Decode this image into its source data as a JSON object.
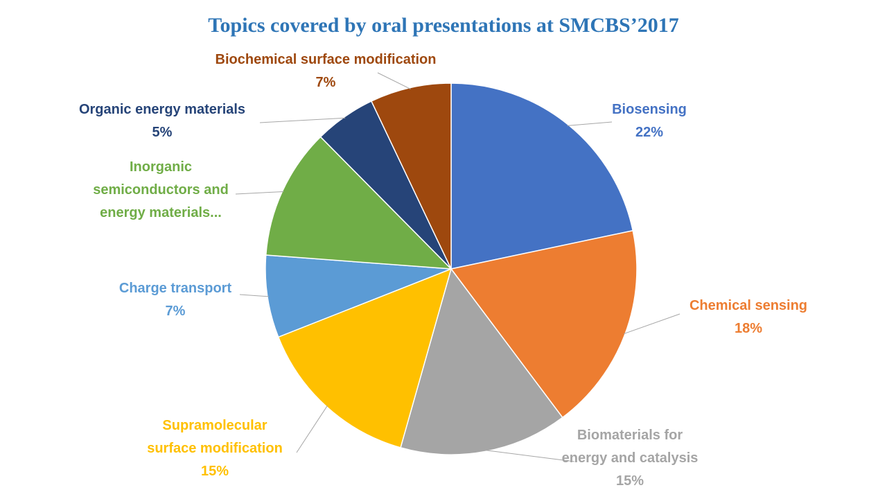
{
  "chart_data": {
    "type": "pie",
    "title": "Topics covered by oral presentations at SMCBS’2017",
    "slices": [
      {
        "name": "Biosensing",
        "lines": [
          "Biosensing"
        ],
        "pct_label": "22%",
        "value": 21.5,
        "color": "#4472C4",
        "label_color": "#4472C4"
      },
      {
        "name": "Chemical sensing",
        "lines": [
          "Chemical sensing"
        ],
        "pct_label": "18%",
        "value": 17.9,
        "color": "#ED7D31",
        "label_color": "#ED7D31"
      },
      {
        "name": "Biomaterials for energy and catalysis",
        "lines": [
          "Biomaterials for",
          "energy and catalysis"
        ],
        "pct_label": "15%",
        "value": 14.5,
        "color": "#A5A5A5",
        "label_color": "#A5A5A5"
      },
      {
        "name": "Supramolecular surface modification",
        "lines": [
          "Supramolecular",
          "surface modification"
        ],
        "pct_label": "15%",
        "value": 14.5,
        "color": "#FFC000",
        "label_color": "#FFC000"
      },
      {
        "name": "Charge transport",
        "lines": [
          "Charge transport"
        ],
        "pct_label": "7%",
        "value": 7.1,
        "color": "#5B9BD5",
        "label_color": "#5B9BD5"
      },
      {
        "name": "Inorganic semiconductors and energy materials...",
        "lines": [
          "Inorganic",
          "semiconductors and",
          "energy materials..."
        ],
        "pct_label": "",
        "value": 11.3,
        "color": "#70AD47",
        "label_color": "#70AD47"
      },
      {
        "name": "Organic energy materials",
        "lines": [
          "Organic energy materials"
        ],
        "pct_label": "5%",
        "value": 5.3,
        "color": "#264478",
        "label_color": "#264478"
      },
      {
        "name": "Biochemical surface modification",
        "lines": [
          "Biochemical surface modification"
        ],
        "pct_label": "7%",
        "value": 7.0,
        "color": "#9E480E",
        "label_color": "#9E480E"
      }
    ]
  }
}
